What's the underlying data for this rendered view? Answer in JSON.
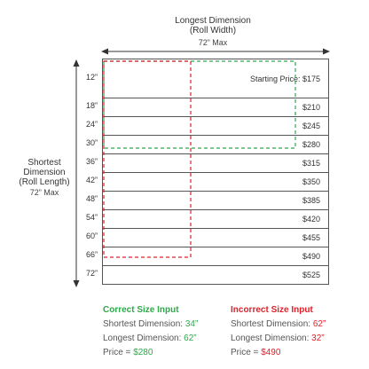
{
  "top_axis": {
    "title_line1": "Longest Dimension",
    "title_line2": "(Roll Width)",
    "max": "72” Max"
  },
  "left_axis": {
    "title_line1": "Shortest",
    "title_line2": "Dimension",
    "title_line3": "(Roll Length)",
    "max": "72” Max"
  },
  "rows": [
    {
      "label": "12”",
      "price": "Starting Price: $175"
    },
    {
      "label": "18”",
      "price": "$210"
    },
    {
      "label": "24”",
      "price": "$245"
    },
    {
      "label": "30”",
      "price": "$280"
    },
    {
      "label": "36”",
      "price": "$315"
    },
    {
      "label": "42”",
      "price": "$350"
    },
    {
      "label": "48”",
      "price": "$385"
    },
    {
      "label": "54”",
      "price": "$420"
    },
    {
      "label": "60”",
      "price": "$455"
    },
    {
      "label": "66”",
      "price": "$490"
    },
    {
      "label": "72”",
      "price": "$525"
    }
  ],
  "correct": {
    "title": "Correct Size Input",
    "shortest_label": "Shortest Dimension: ",
    "shortest_value": "34”",
    "longest_label": "Longest Dimension: ",
    "longest_value": "62”",
    "price_label": "Price = ",
    "price_value": "$280"
  },
  "incorrect": {
    "title": "Incorrect Size Input",
    "shortest_label": "Shortest Dimension: ",
    "shortest_value": "62”",
    "longest_label": "Longest Dimension: ",
    "longest_value": "32”",
    "price_label": "Price = ",
    "price_value": "$490"
  },
  "colors": {
    "correct": "#2ea84a",
    "incorrect": "#e0202a",
    "border": "#555555"
  }
}
